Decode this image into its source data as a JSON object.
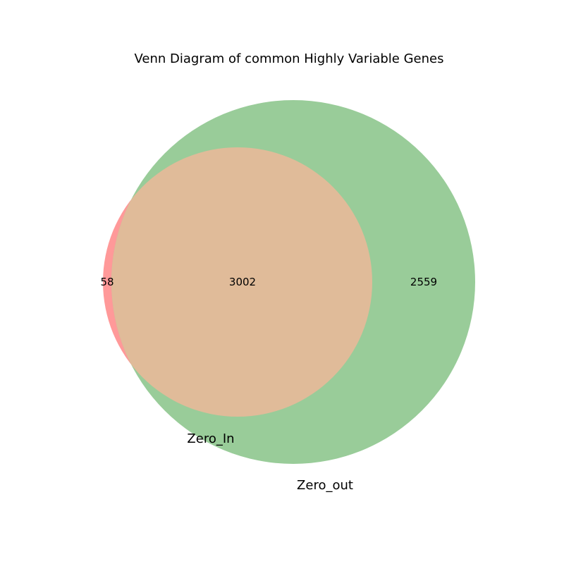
{
  "title": "Venn Diagram of common Highly Variable Genes",
  "sets": [
    {
      "name": "Zero_In",
      "color": "#ff9999"
    },
    {
      "name": "Zero_out",
      "color": "#99cc99"
    }
  ],
  "overlap_color": "#e0bb99",
  "regions": {
    "zero_in_only": "58",
    "intersection": "3002",
    "zero_out_only": "2559"
  }
}
